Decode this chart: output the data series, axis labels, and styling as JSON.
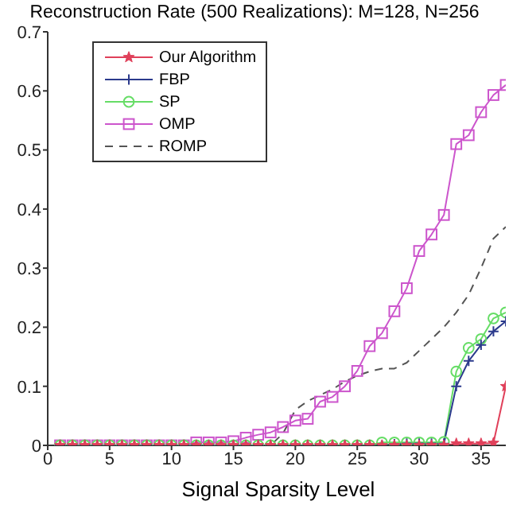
{
  "chart_data": {
    "type": "line",
    "title": "Reconstruction Rate (500 Realizations): M=128, N=256",
    "xlabel": "Signal Sparsity Level",
    "x": [
      1,
      2,
      3,
      4,
      5,
      6,
      7,
      8,
      9,
      10,
      11,
      12,
      13,
      14,
      15,
      16,
      17,
      18,
      19,
      20,
      21,
      22,
      23,
      24,
      25,
      26,
      27,
      28,
      29,
      30,
      31,
      32,
      33,
      34,
      35,
      36,
      37
    ],
    "series": [
      {
        "name": "Our Algorithm",
        "color": "#e0405a",
        "marker": "star",
        "values": [
          0,
          0,
          0,
          0,
          0,
          0,
          0,
          0,
          0,
          0,
          0,
          0,
          0,
          0,
          0,
          0,
          0,
          0,
          0,
          0,
          0,
          0,
          0,
          0,
          0,
          0,
          0,
          0,
          0,
          0,
          0,
          0,
          0.003,
          0.003,
          0.003,
          0.004,
          0.1
        ]
      },
      {
        "name": "FBP",
        "color": "#2b3a8c",
        "marker": "cross",
        "values": [
          0,
          0,
          0,
          0,
          0,
          0,
          0,
          0,
          0,
          0,
          0,
          0,
          0,
          0,
          0,
          0,
          0,
          0,
          0,
          0,
          0,
          0,
          0,
          0,
          0,
          0,
          0,
          0.002,
          0.003,
          0.003,
          0.003,
          0.003,
          0.1,
          0.143,
          0.17,
          0.193,
          0.21
        ]
      },
      {
        "name": "SP",
        "color": "#66dd66",
        "marker": "circle",
        "values": [
          0,
          0,
          0,
          0,
          0,
          0,
          0,
          0,
          0,
          0,
          0,
          0,
          0,
          0,
          0,
          0,
          0,
          0,
          0,
          0,
          0,
          0,
          0,
          0,
          0,
          0,
          0.005,
          0.005,
          0.005,
          0.005,
          0.005,
          0.006,
          0.125,
          0.165,
          0.18,
          0.215,
          0.225
        ]
      },
      {
        "name": "OMP",
        "color": "#cc55cc",
        "marker": "square",
        "values": [
          0,
          0,
          0,
          0,
          0,
          0,
          0,
          0,
          0,
          0,
          0,
          0.005,
          0.005,
          0.005,
          0.007,
          0.013,
          0.018,
          0.022,
          0.031,
          0.042,
          0.045,
          0.074,
          0.082,
          0.1,
          0.126,
          0.168,
          0.19,
          0.227,
          0.266,
          0.329,
          0.357,
          0.39,
          0.51,
          0.525,
          0.564,
          0.593,
          0.61
        ]
      },
      {
        "name": "ROMP",
        "color": "#555555",
        "marker": "none",
        "line_style": "dashed",
        "values": [
          0,
          0,
          0,
          0,
          0,
          0,
          0,
          0,
          0,
          0,
          0,
          0,
          0,
          0,
          0,
          0,
          0,
          0,
          0.02,
          0.06,
          0.075,
          0.085,
          0.095,
          0.108,
          0.118,
          0.125,
          0.13,
          0.13,
          0.14,
          0.16,
          0.18,
          0.2,
          0.225,
          0.255,
          0.3,
          0.35,
          0.37
        ]
      }
    ],
    "xlim": [
      0,
      37
    ],
    "xticks": [
      0,
      5,
      10,
      15,
      20,
      25,
      30,
      35
    ],
    "ylim": [
      0,
      0.7
    ],
    "yticks": [
      0,
      0.1,
      0.2,
      0.3,
      0.4,
      0.5,
      0.6,
      0.7
    ],
    "grid": false,
    "legend": "top left"
  }
}
